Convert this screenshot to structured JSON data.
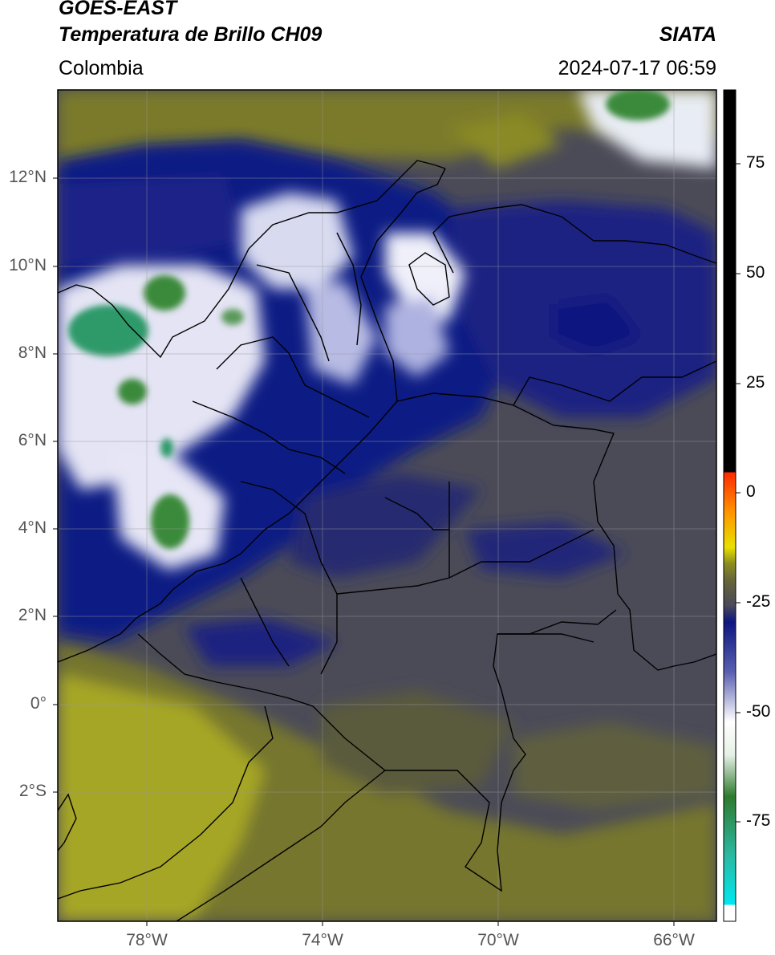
{
  "header": {
    "title_line1": "GOES-EAST",
    "title_line2": "Temperatura de Brillo CH09",
    "subtitle": "Colombia",
    "brand": "SIATA",
    "datetime": "2024-07-17 06:59"
  },
  "map": {
    "lat_ticks": [
      "12°N",
      "10°N",
      "8°N",
      "6°N",
      "4°N",
      "2°N",
      "0°",
      "2°S"
    ],
    "lon_ticks": [
      "78°W",
      "74°W",
      "70°W",
      "66°W"
    ],
    "extent": {
      "lon_min": -80,
      "lon_max": -65,
      "lat_min": -5.2,
      "lat_max": 14
    }
  },
  "colorbar": {
    "ticks": [
      "75",
      "50",
      "25",
      "0",
      "-25",
      "-50",
      "-75"
    ],
    "tick_values": [
      75,
      50,
      25,
      0,
      -25,
      -50,
      -75
    ],
    "range": [
      -95,
      90
    ],
    "colors": {
      "hot": "#000000",
      "warm": "#ff2a00",
      "yellow": "#e8e000",
      "olive": "#8c8c20",
      "grey": "#4a4a5a",
      "navy": "#0d1680",
      "white": "#ffffff",
      "green": "#3a8a3a",
      "teal": "#2cb8a0",
      "cyan": "#00e8f0"
    }
  }
}
